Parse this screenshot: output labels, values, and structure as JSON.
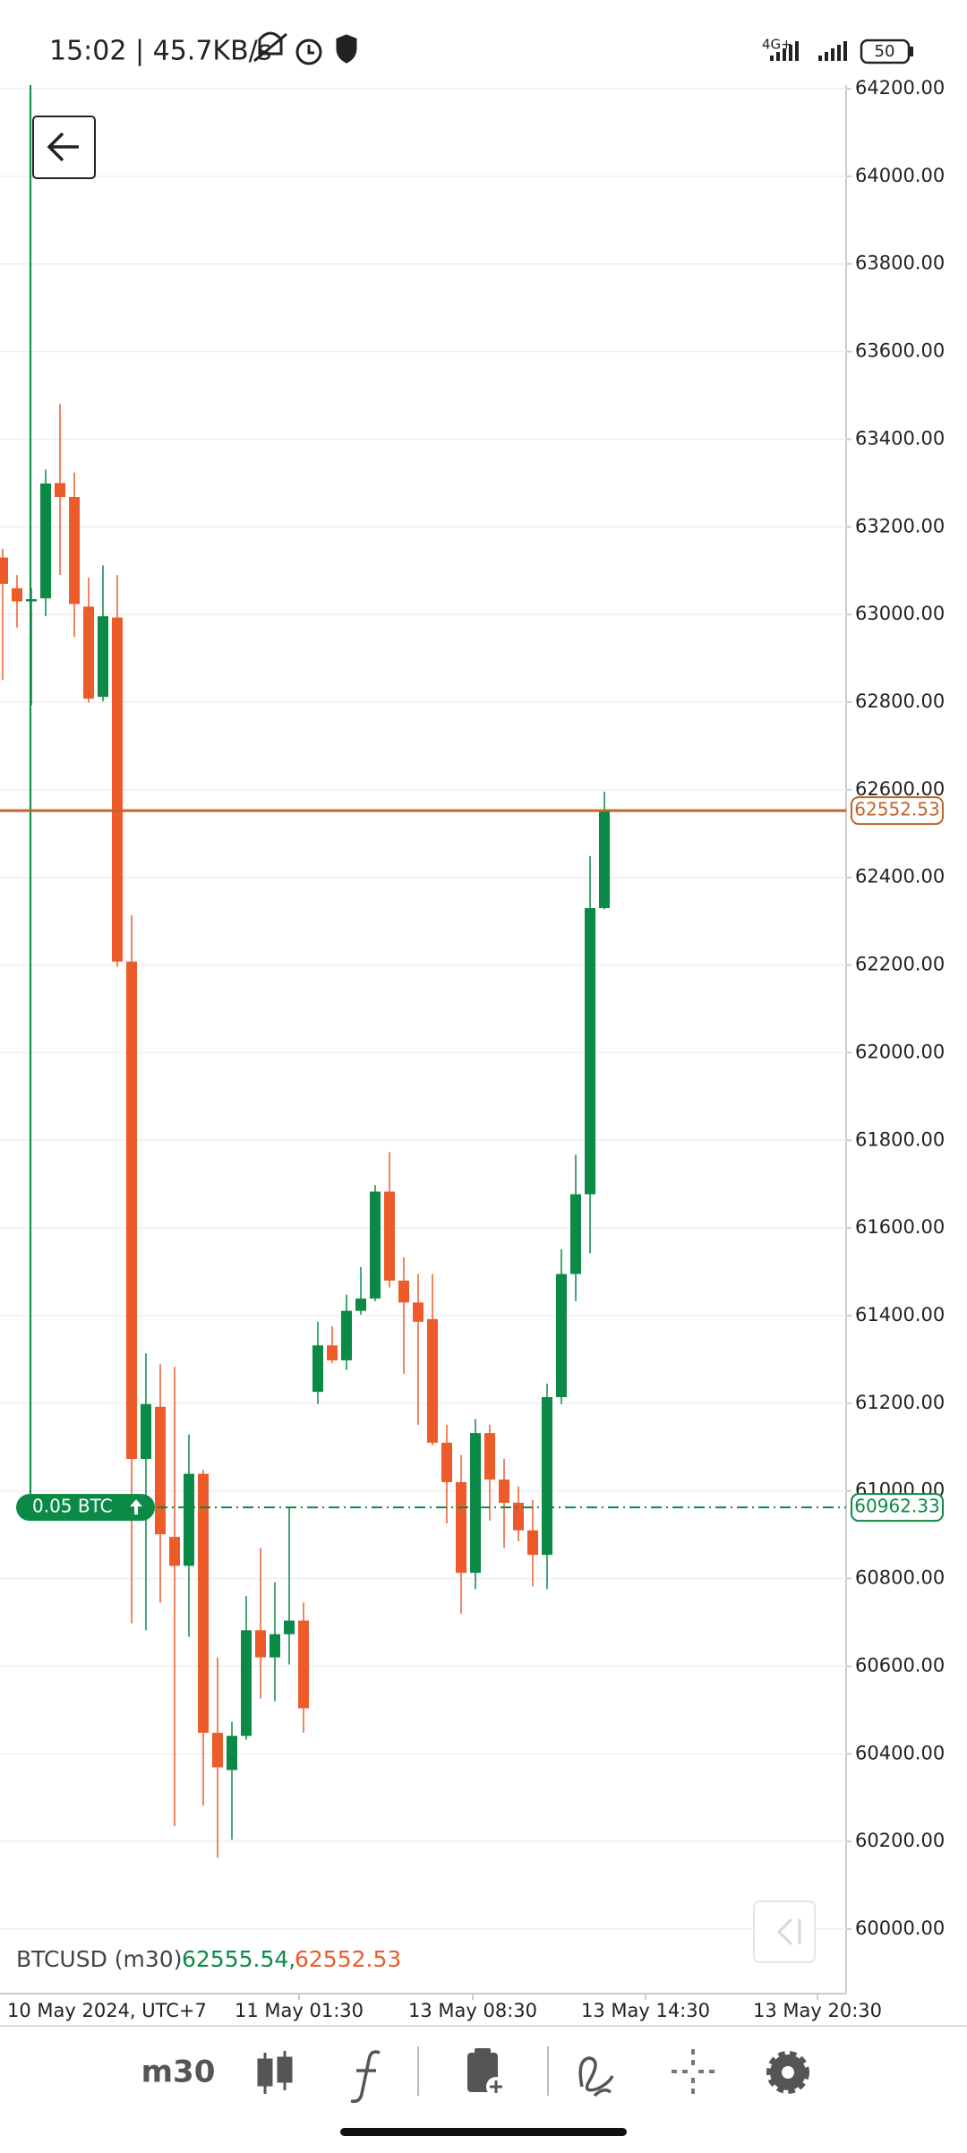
{
  "status_bar": {
    "time": "15:02 | 45.7KB/s",
    "network": "4G+",
    "battery": "50"
  },
  "toolbar": {
    "timeframe": "m30"
  },
  "chart_data": {
    "type": "candlestick",
    "up_color": "#0b8a45",
    "down_color": "#ee5b2b",
    "open": [
      63130,
      63060,
      63030,
      63037,
      63300,
      63268,
      63018,
      62812,
      62993,
      62208,
      61073,
      61192,
      60895,
      60829,
      61039,
      60448,
      60363,
      60441,
      60682,
      60620,
      60673,
      60704,
      61226,
      61332,
      61298,
      61411,
      61439,
      61683,
      61480,
      61430,
      61392,
      61110,
      61020,
      60813,
      61132,
      61026,
      60973,
      60910,
      60854,
      61214,
      61495,
      61677,
      62330
    ],
    "high": [
      63150,
      63090,
      63060,
      63331,
      63481,
      63324,
      63084,
      63112,
      63090,
      62314,
      61314,
      61289,
      61283,
      61129,
      61048,
      60620,
      60473,
      60760,
      60870,
      60792,
      60964,
      60745,
      61386,
      61376,
      61448,
      61511,
      61698,
      61773,
      61533,
      61495,
      61495,
      61151,
      61082,
      61164,
      61151,
      61073,
      61010,
      60979,
      61245,
      61551,
      61767,
      62449,
      62596
    ],
    "low": [
      62850,
      62970,
      62793,
      62996,
      63090,
      62949,
      62799,
      62802,
      62196,
      60698,
      60682,
      60745,
      60235,
      60667,
      60282,
      60163,
      60204,
      60432,
      60526,
      60520,
      60604,
      60448,
      61198,
      61292,
      61276,
      61402,
      61433,
      61464,
      61267,
      61151,
      61104,
      60926,
      60720,
      60776,
      60932,
      60870,
      60885,
      60782,
      60776,
      61198,
      61433,
      61542,
      62327
    ],
    "close": [
      63070,
      63030,
      63035,
      63299,
      63268,
      63024,
      62808,
      62996,
      62208,
      61073,
      61198,
      60901,
      60829,
      61039,
      60448,
      60369,
      60441,
      60682,
      60620,
      60673,
      60704,
      60504,
      61332,
      61298,
      61411,
      61439,
      61683,
      61480,
      61430,
      61386,
      61110,
      61020,
      60813,
      61132,
      61026,
      60973,
      60910,
      60854,
      61214,
      61495,
      61677,
      62330,
      62552.53
    ],
    "ylim": [
      60000,
      64200
    ],
    "yticks": [
      {
        "value": 60000,
        "label": "60000.00"
      },
      {
        "value": 60200,
        "label": "60200.00"
      },
      {
        "value": 60400,
        "label": "60400.00"
      },
      {
        "value": 60600,
        "label": "60600.00"
      },
      {
        "value": 60800,
        "label": "60800.00"
      },
      {
        "value": 61000,
        "label": "61000.00"
      },
      {
        "value": 61200,
        "label": "61200.00"
      },
      {
        "value": 61400,
        "label": "61400.00"
      },
      {
        "value": 61600,
        "label": "61600.00"
      },
      {
        "value": 61800,
        "label": "61800.00"
      },
      {
        "value": 62000,
        "label": "62000.00"
      },
      {
        "value": 62200,
        "label": "62200.00"
      },
      {
        "value": 62400,
        "label": "62400.00"
      },
      {
        "value": 62600,
        "label": "62600.00"
      },
      {
        "value": 62800,
        "label": "62800.00"
      },
      {
        "value": 63000,
        "label": "63000.00"
      },
      {
        "value": 63200,
        "label": "63200.00"
      },
      {
        "value": 63400,
        "label": "63400.00"
      },
      {
        "value": 63600,
        "label": "63600.00"
      },
      {
        "value": 63800,
        "label": "63800.00"
      },
      {
        "value": 64000,
        "label": "64000.00"
      },
      {
        "value": 64200,
        "label": "64200.00"
      }
    ],
    "grid": true,
    "x_labels": [
      "10 May 2024, UTC+7",
      "11 May 01:30",
      "13 May 08:30",
      "13 May 14:30",
      "13 May 20:30"
    ],
    "last_price": 62552.53,
    "last_price_color": "#c0662c",
    "position_price": 60962.33,
    "position_label": "0.05 BTC",
    "position_color": "#0b8a45",
    "info": {
      "symbol": "BTCUSD (m30)",
      "bid": "62555.54,",
      "ask": "62552.53"
    }
  }
}
